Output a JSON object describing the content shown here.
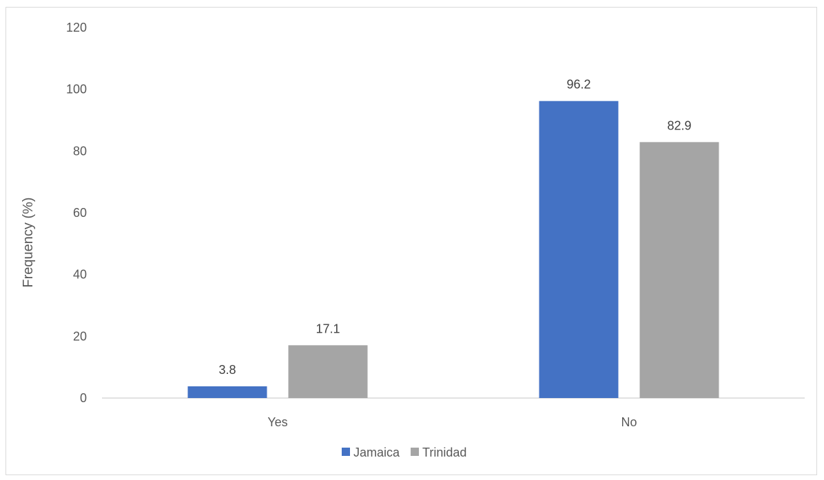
{
  "chart_data": {
    "type": "bar",
    "categories": [
      "Yes",
      "No"
    ],
    "series": [
      {
        "name": "Jamaica",
        "values": [
          3.8,
          96.2
        ],
        "color": "#4472c4"
      },
      {
        "name": "Trinidad",
        "values": [
          17.1,
          82.9
        ],
        "color": "#a5a5a5"
      }
    ],
    "title": "",
    "xlabel": "",
    "ylabel": "Frequency (%)",
    "ylim": [
      0,
      120
    ],
    "yticks": [
      "0",
      "20",
      "40",
      "60",
      "80",
      "100",
      "120"
    ],
    "grid": false,
    "legend": "bottom-center"
  }
}
